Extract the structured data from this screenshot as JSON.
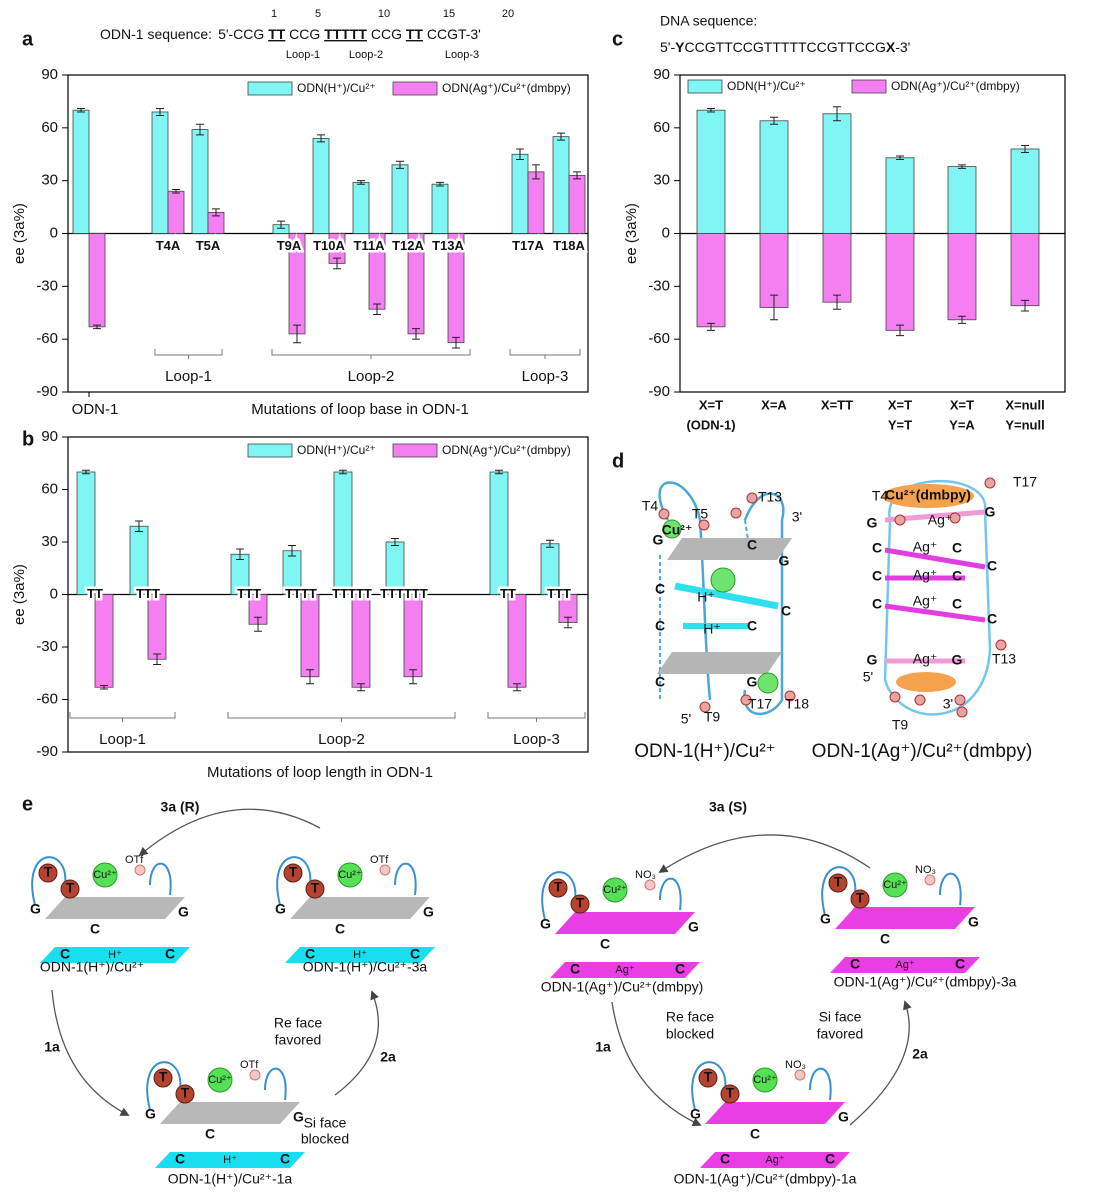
{
  "panel_labels": [
    "a",
    "b",
    "c",
    "d",
    "e"
  ],
  "chart_data": [
    {
      "type": "bar",
      "sequence_label": "ODN-1 sequence:",
      "sequence": [
        "5'-CCG ",
        "TT",
        " CCG ",
        "TTTTT",
        " CCG ",
        "TT",
        " CCGT-3'"
      ],
      "sequence_positions": [
        1,
        5,
        10,
        15,
        20
      ],
      "groups": [
        "Loop-1",
        "Loop-2",
        "Loop-3"
      ],
      "ylabel": "ee (3a%)",
      "xlabel": "Mutations of loop base in ODN-1",
      "categories": [
        "ODN-1",
        "T4A",
        "T5A",
        "T9A",
        "T10A",
        "T11A",
        "T12A",
        "T13A",
        "T17A",
        "T18A"
      ],
      "series": [
        {
          "name": "ODN(H⁺)/Cu²⁺",
          "color": "#7ff6f4",
          "values": [
            70,
            69,
            59,
            5,
            54,
            29,
            39,
            28,
            45,
            55
          ],
          "errors": [
            1,
            2,
            3,
            2,
            2,
            1,
            2,
            1,
            3,
            2
          ]
        },
        {
          "name": "ODN(Ag⁺)/Cu²⁺(dmbpy)",
          "color": "#f47ff1",
          "values": [
            -53,
            24,
            12,
            -57,
            -17,
            -43,
            -57,
            -62,
            35,
            33
          ],
          "errors": [
            1,
            1,
            2,
            5,
            3,
            3,
            3,
            3,
            4,
            2
          ]
        }
      ],
      "ylim": [
        -90,
        90
      ],
      "yticks": [
        -90,
        -60,
        -30,
        0,
        30,
        60,
        90
      ],
      "legend": "top-right"
    },
    {
      "type": "bar",
      "groups": [
        "Loop-1",
        "Loop-2",
        "Loop-3"
      ],
      "ylabel": "ee (3a%)",
      "xlabel": "Mutations of loop length in ODN-1",
      "categories": [
        "TT",
        "TTT",
        "TTT",
        "TTTT",
        "TTTTT",
        "TTTTTT",
        "TT",
        "TTT"
      ],
      "series": [
        {
          "name": "ODN(H⁺)/Cu²⁺",
          "color": "#7ff6f4",
          "values": [
            70,
            39,
            23,
            25,
            70,
            30,
            70,
            29
          ],
          "errors": [
            1,
            3,
            3,
            3,
            1,
            2,
            1,
            2
          ]
        },
        {
          "name": "ODN(Ag⁺)/Cu²⁺(dmbpy)",
          "color": "#f47ff1",
          "values": [
            -53,
            -37,
            -17,
            -47,
            -53,
            -47,
            -53,
            -16
          ],
          "errors": [
            1,
            3,
            4,
            4,
            2,
            4,
            2,
            3
          ]
        }
      ],
      "ylim": [
        -90,
        90
      ],
      "yticks": [
        -90,
        -60,
        -30,
        0,
        30,
        60,
        90
      ],
      "legend": "top-right"
    },
    {
      "type": "bar",
      "sequence_label": "DNA sequence:",
      "sequence": [
        "5'-",
        "Y",
        "CCGTTCCGTTTTTCCGTTCCG",
        "X",
        "-3'"
      ],
      "ylabel": "ee (3a%)",
      "categories": [
        [
          "X=T",
          "(ODN-1)"
        ],
        [
          "X=A"
        ],
        [
          "X=TT"
        ],
        [
          "X=T",
          "Y=T"
        ],
        [
          "X=T",
          "Y=A"
        ],
        [
          "X=null",
          "Y=null"
        ]
      ],
      "series": [
        {
          "name": "ODN(H⁺)/Cu²⁺",
          "color": "#7ff6f4",
          "values": [
            70,
            64,
            68,
            43,
            38,
            48
          ],
          "errors": [
            1,
            2,
            4,
            1,
            1,
            2
          ]
        },
        {
          "name": "ODN(Ag⁺)/Cu²⁺(dmbpy)",
          "color": "#f47ff1",
          "values": [
            -53,
            -42,
            -39,
            -55,
            -49,
            -41
          ],
          "errors": [
            2,
            7,
            4,
            3,
            2,
            3
          ]
        }
      ],
      "ylim": [
        -90,
        90
      ],
      "yticks": [
        -90,
        -60,
        -30,
        0,
        30,
        60,
        90
      ],
      "legend": "top-right"
    }
  ],
  "diagram_d": {
    "left": {
      "caption": "ODN-1(H⁺)/Cu²⁺",
      "labels": [
        "T4",
        "T5",
        "T13",
        "3'",
        "G",
        "Cu²⁺",
        "C",
        "G",
        "C",
        "H⁺",
        "C",
        "C",
        "H⁺",
        "C",
        "C",
        "G",
        "5'",
        "T9",
        "T17",
        "T18"
      ]
    },
    "right": {
      "caption": "ODN-1(Ag⁺)/Cu²⁺(dmbpy)",
      "labels": [
        "T4",
        "Cu²⁺(dmbpy)",
        "T17",
        "G",
        "Ag⁺",
        "G",
        "C",
        "Ag⁺",
        "C",
        "C",
        "C",
        "Ag⁺",
        "C",
        "C",
        "Ag⁺",
        "C",
        "C",
        "G",
        "Ag⁺",
        "G",
        "T13",
        "5'",
        "T9",
        "3'"
      ]
    }
  },
  "scheme_e": {
    "texts": [
      "3a (R)",
      "ODN-1(H⁺)/Cu²⁺",
      "ODN-1(H⁺)/Cu²⁺-3a",
      "1a",
      "2a",
      "Re face",
      "favored",
      "Si face",
      "blocked",
      "ODN-1(H⁺)/Cu²⁺-1a",
      "3a (S)",
      "ODN-1(Ag⁺)/Cu²⁺(dmbpy)",
      "ODN-1(Ag⁺)/Cu²⁺(dmbpy)-3a",
      "1a",
      "2a",
      "Re face",
      "blocked",
      "Si face",
      "favored",
      "ODN-1(Ag⁺)/Cu²⁺(dmbpy)-1a"
    ],
    "parts": {
      "t": "T",
      "g": "G",
      "c": "C",
      "h": "H⁺",
      "ag": "Ag⁺",
      "cu": "Cu²⁺",
      "otf": "OTf",
      "no3": "NO₃"
    }
  }
}
